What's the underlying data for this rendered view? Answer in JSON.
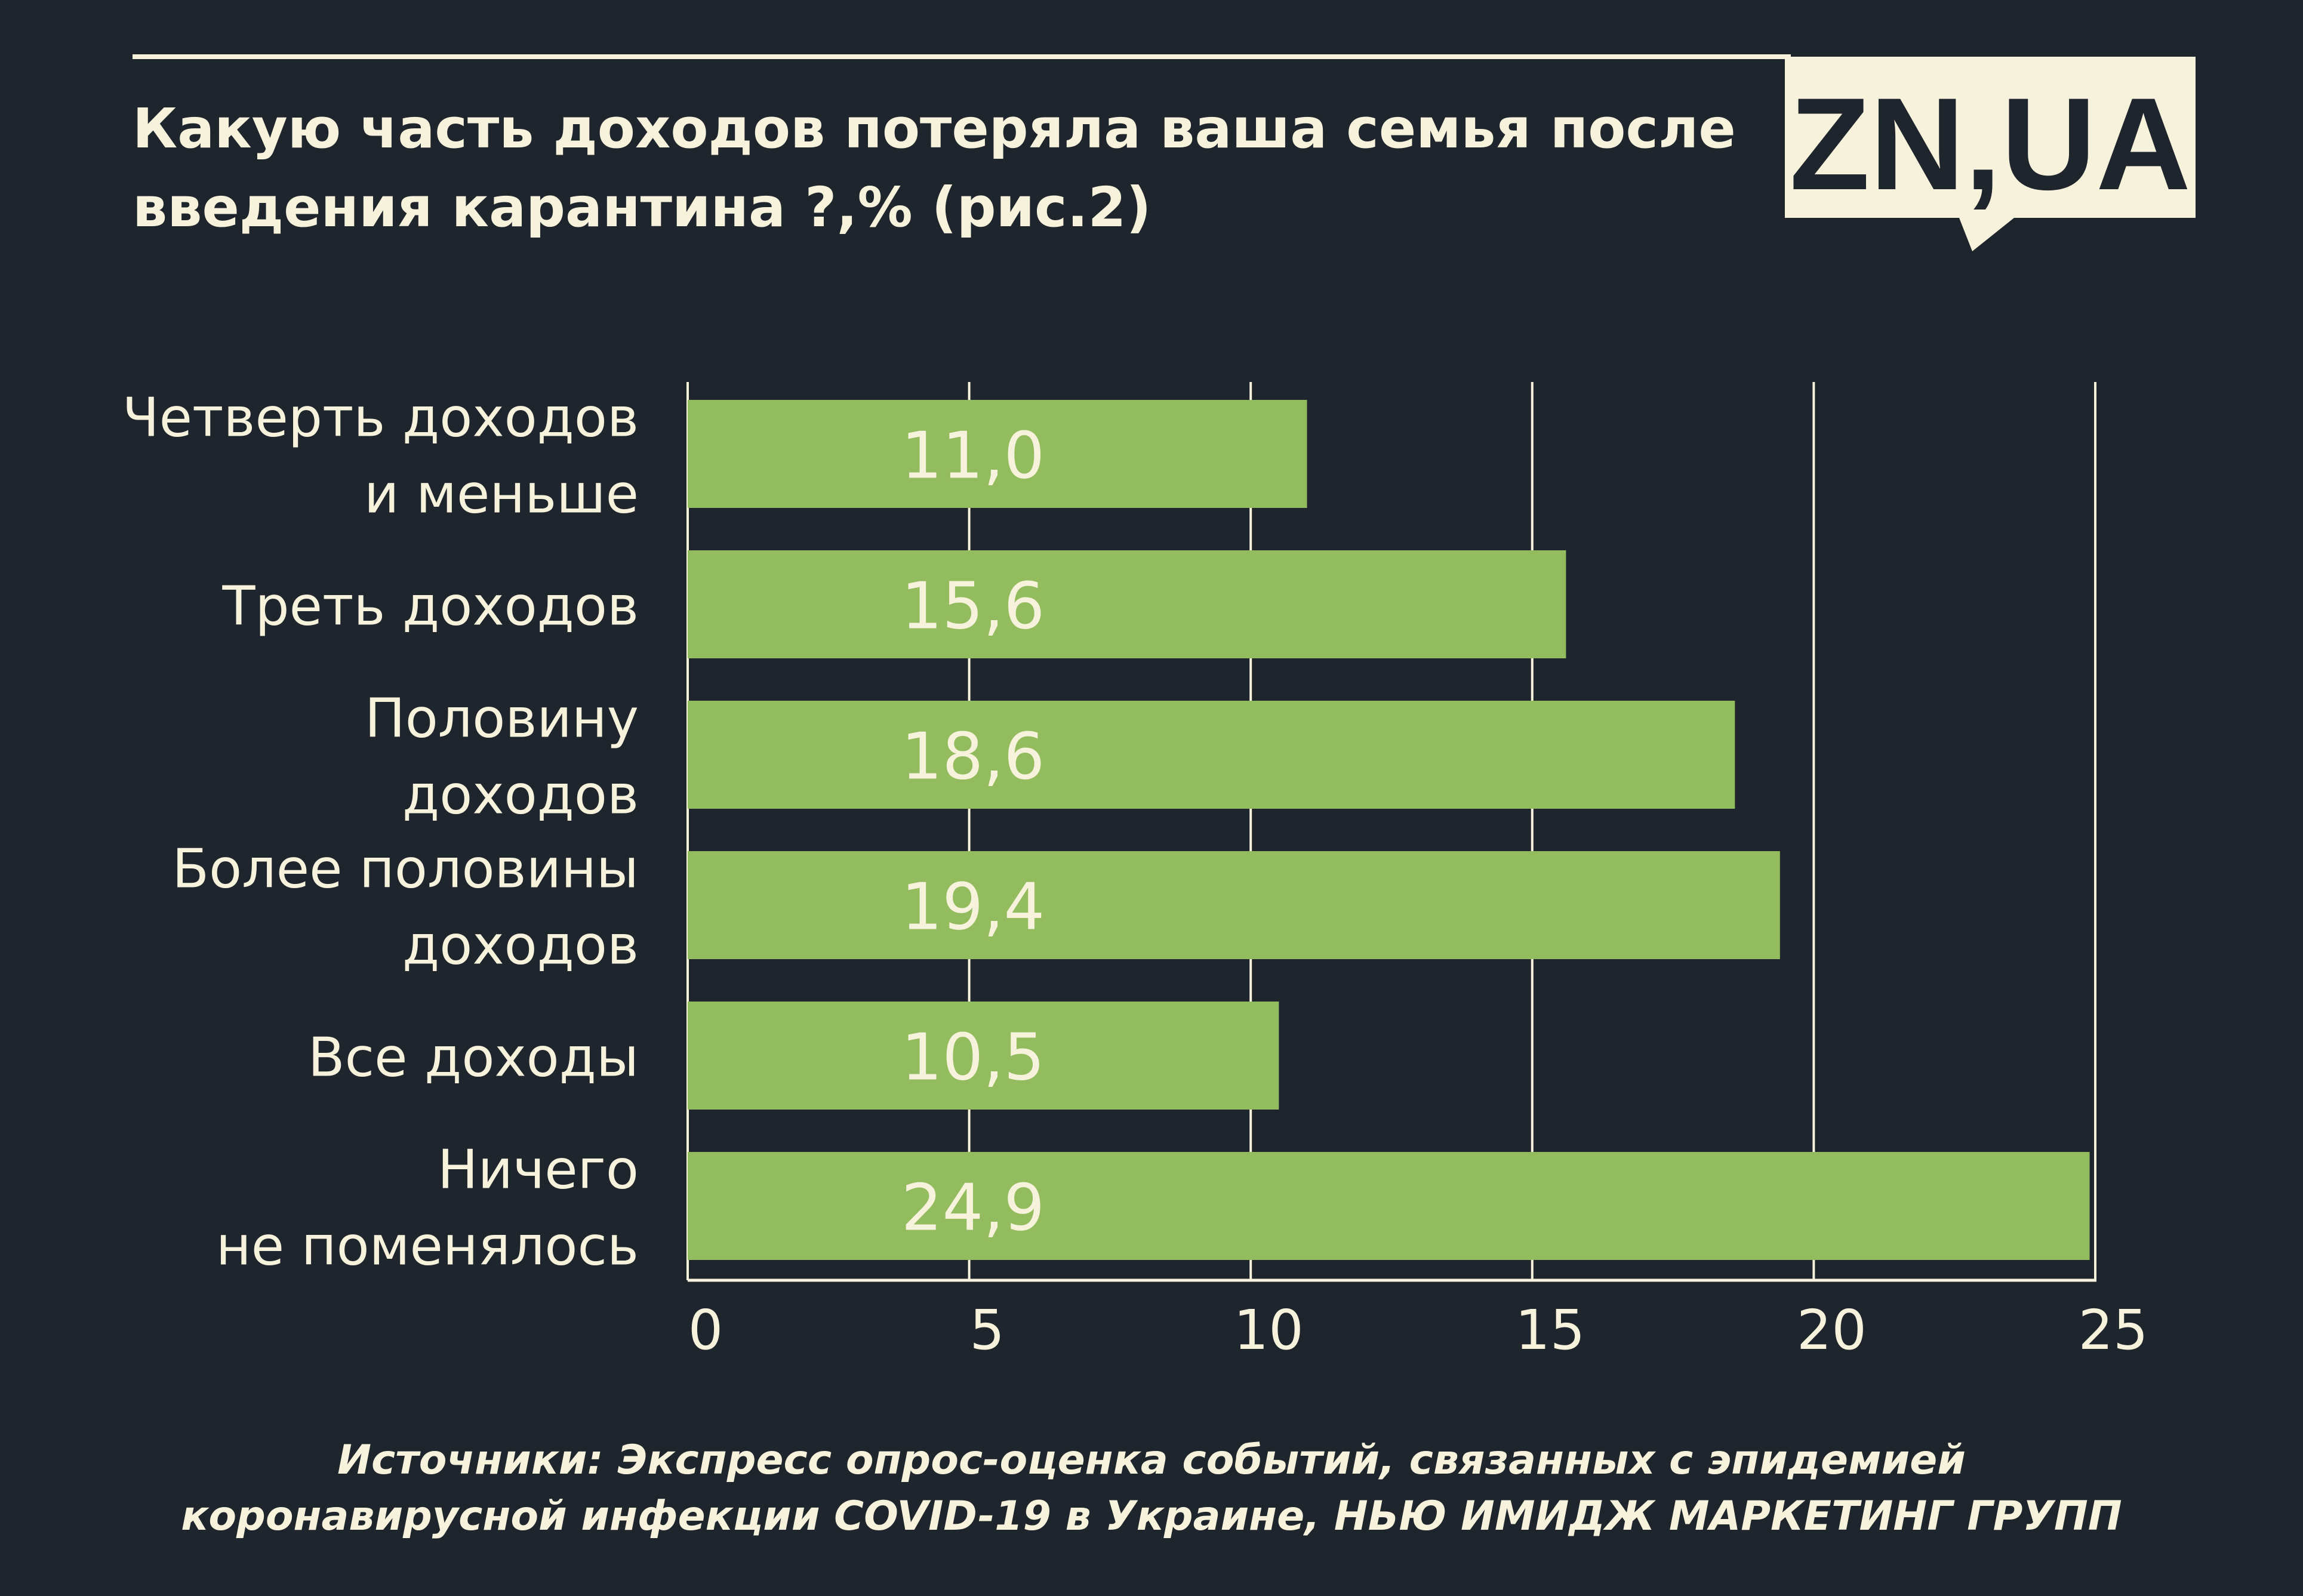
{
  "title": {
    "line1": "Какую часть доходов потеряла ваша семья после",
    "line2": "введения карантина ?,% (рис.2)"
  },
  "logo": {
    "text": "ZN,UA"
  },
  "source": {
    "line1": "Источники: Экспресс опрос-оценка событий, связанных с эпидемией",
    "line2": "коронавирусной инфекции COVID-19 в Украине, НЬЮ ИМИДЖ МАРКЕТИНГ ГРУПП"
  },
  "colors": {
    "background": "#1e252d",
    "bar": "#93bc5f",
    "text": "#f7f2dc",
    "grid": "#f7f2dc"
  },
  "chart_data": {
    "type": "bar",
    "orientation": "horizontal",
    "title": "Какую часть доходов потеряла ваша семья после введения карантина ?,% (рис.2)",
    "categories": [
      [
        "Четверть доходов",
        "и меньше"
      ],
      [
        "Треть доходов"
      ],
      [
        "Половину",
        "доходов"
      ],
      [
        "Более половины",
        "доходов"
      ],
      [
        "Все доходы"
      ],
      [
        "Ничего",
        "не поменялось"
      ]
    ],
    "values": [
      11.0,
      15.6,
      18.6,
      19.4,
      10.5,
      24.9
    ],
    "value_labels": [
      "11,0",
      "15,6",
      "18,6",
      "19,4",
      "10,5",
      "24,9"
    ],
    "xlim": [
      0,
      25
    ],
    "x_ticks": [
      0,
      5,
      10,
      15,
      20,
      25
    ],
    "grid": true,
    "xlabel": "",
    "ylabel": ""
  }
}
